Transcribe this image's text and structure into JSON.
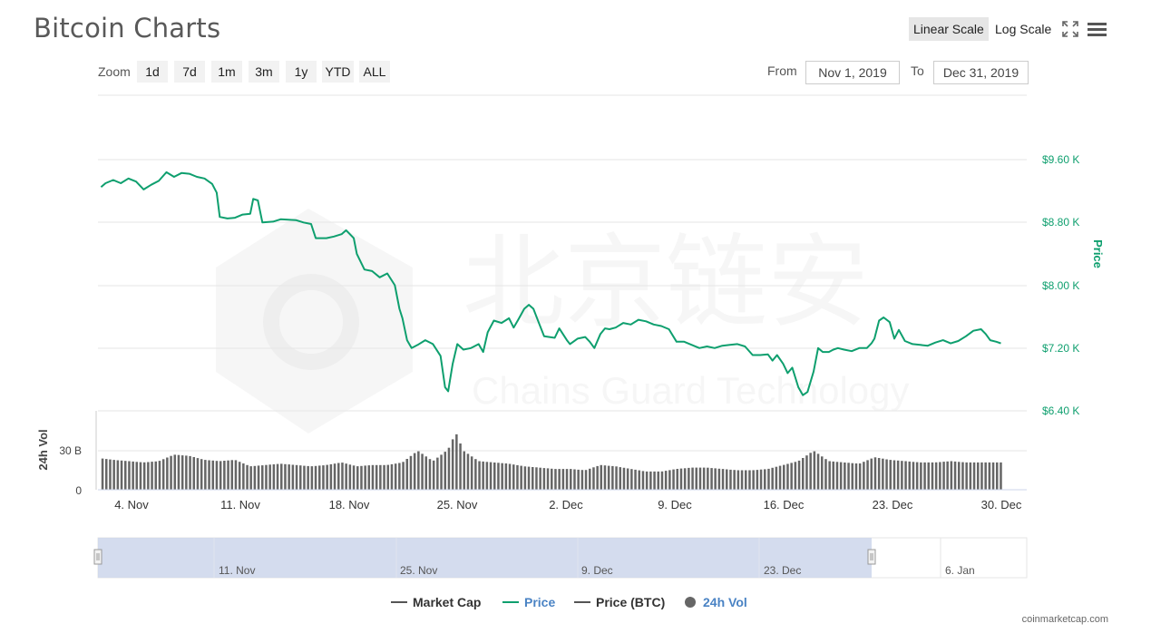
{
  "header": {
    "title": "Bitcoin Charts",
    "linear_scale_label": "Linear Scale",
    "log_scale_label": "Log Scale"
  },
  "toolbar": {
    "zoom_label": "Zoom",
    "zoom_options": [
      "1d",
      "7d",
      "1m",
      "3m",
      "1y",
      "YTD",
      "ALL"
    ],
    "from_label": "From",
    "from_value": "Nov 1, 2019",
    "to_label": "To",
    "to_value": "Dec 31, 2019"
  },
  "watermark": {
    "cn_text": "北京链安",
    "en_text": "Chains Guard Technology"
  },
  "chart_data": {
    "type": "line",
    "price_axis_title": "Price",
    "volume_axis_title": "24h Vol",
    "price_ticks": [
      {
        "value": 9600,
        "label": "$9.60 K"
      },
      {
        "value": 8800,
        "label": "$8.80 K"
      },
      {
        "value": 8000,
        "label": "$8.00 K"
      },
      {
        "value": 7200,
        "label": "$7.20 K"
      },
      {
        "value": 6400,
        "label": "$6.40 K"
      }
    ],
    "price_ylim": [
      6400,
      10400
    ],
    "volume_ticks": [
      {
        "value": 0,
        "label": "0"
      },
      {
        "value": 30,
        "label": "30 B"
      }
    ],
    "volume_ylim": [
      0,
      55
    ],
    "x_range_days": [
      2,
      63
    ],
    "x_ticks": [
      {
        "day": 4,
        "label": "4. Nov"
      },
      {
        "day": 11,
        "label": "11. Nov"
      },
      {
        "day": 18,
        "label": "18. Nov"
      },
      {
        "day": 25,
        "label": "25. Nov"
      },
      {
        "day": 32,
        "label": "2. Dec"
      },
      {
        "day": 39,
        "label": "9. Dec"
      },
      {
        "day": 46,
        "label": "16. Dec"
      },
      {
        "day": 53,
        "label": "23. Dec"
      },
      {
        "day": 60,
        "label": "30. Dec"
      }
    ],
    "price_series": {
      "name": "Price",
      "color": "#0e9f6e",
      "points": [
        [
          2.2,
          9250
        ],
        [
          2.5,
          9300
        ],
        [
          3.0,
          9340
        ],
        [
          3.5,
          9300
        ],
        [
          4.0,
          9360
        ],
        [
          4.5,
          9320
        ],
        [
          5.0,
          9220
        ],
        [
          5.5,
          9280
        ],
        [
          6.0,
          9330
        ],
        [
          6.5,
          9440
        ],
        [
          7.0,
          9380
        ],
        [
          7.5,
          9430
        ],
        [
          8.0,
          9420
        ],
        [
          8.5,
          9380
        ],
        [
          9.0,
          9360
        ],
        [
          9.5,
          9290
        ],
        [
          9.8,
          9180
        ],
        [
          10.0,
          8870
        ],
        [
          10.5,
          8850
        ],
        [
          11.0,
          8860
        ],
        [
          11.5,
          8900
        ],
        [
          12.0,
          8910
        ],
        [
          12.2,
          9100
        ],
        [
          12.5,
          9080
        ],
        [
          12.8,
          8800
        ],
        [
          13.5,
          8810
        ],
        [
          14.0,
          8840
        ],
        [
          15.0,
          8830
        ],
        [
          15.5,
          8800
        ],
        [
          16.0,
          8780
        ],
        [
          16.3,
          8600
        ],
        [
          17.0,
          8600
        ],
        [
          17.5,
          8620
        ],
        [
          18.0,
          8650
        ],
        [
          18.3,
          8700
        ],
        [
          18.8,
          8600
        ],
        [
          19.0,
          8400
        ],
        [
          19.5,
          8200
        ],
        [
          20.0,
          8180
        ],
        [
          20.5,
          8100
        ],
        [
          21.0,
          8150
        ],
        [
          21.5,
          8000
        ],
        [
          21.8,
          7700
        ],
        [
          22.0,
          7580
        ],
        [
          22.3,
          7300
        ],
        [
          22.6,
          7200
        ],
        [
          23.0,
          7240
        ],
        [
          23.5,
          7300
        ],
        [
          24.0,
          7250
        ],
        [
          24.5,
          7100
        ],
        [
          24.8,
          6700
        ],
        [
          25.0,
          6650
        ],
        [
          25.3,
          7000
        ],
        [
          25.6,
          7250
        ],
        [
          26.0,
          7180
        ],
        [
          26.5,
          7200
        ],
        [
          27.0,
          7250
        ],
        [
          27.3,
          7150
        ],
        [
          27.6,
          7400
        ],
        [
          28.0,
          7550
        ],
        [
          28.5,
          7520
        ],
        [
          29.0,
          7580
        ],
        [
          29.3,
          7460
        ],
        [
          29.6,
          7560
        ],
        [
          30.0,
          7700
        ],
        [
          30.3,
          7750
        ],
        [
          30.6,
          7700
        ],
        [
          31.0,
          7500
        ],
        [
          31.3,
          7350
        ],
        [
          32.0,
          7330
        ],
        [
          32.3,
          7450
        ],
        [
          32.8,
          7300
        ],
        [
          33.0,
          7250
        ],
        [
          33.5,
          7320
        ],
        [
          34.0,
          7340
        ],
        [
          34.3,
          7280
        ],
        [
          34.6,
          7200
        ],
        [
          35.0,
          7380
        ],
        [
          35.3,
          7450
        ],
        [
          35.6,
          7440
        ],
        [
          36.0,
          7460
        ],
        [
          36.5,
          7520
        ],
        [
          37.0,
          7500
        ],
        [
          37.5,
          7560
        ],
        [
          38.0,
          7540
        ],
        [
          38.5,
          7500
        ],
        [
          39.0,
          7480
        ],
        [
          39.5,
          7440
        ],
        [
          40.0,
          7280
        ],
        [
          40.5,
          7280
        ],
        [
          41.0,
          7240
        ],
        [
          41.5,
          7200
        ],
        [
          42.0,
          7220
        ],
        [
          42.5,
          7200
        ],
        [
          43.0,
          7230
        ],
        [
          43.5,
          7240
        ],
        [
          44.0,
          7250
        ],
        [
          44.5,
          7220
        ],
        [
          45.0,
          7110
        ],
        [
          45.5,
          7110
        ],
        [
          46.0,
          7120
        ],
        [
          46.3,
          7040
        ],
        [
          46.6,
          7110
        ],
        [
          47.0,
          7000
        ],
        [
          47.3,
          6880
        ],
        [
          47.6,
          6950
        ],
        [
          48.0,
          6700
        ],
        [
          48.3,
          6600
        ],
        [
          48.6,
          6640
        ],
        [
          49.0,
          6900
        ],
        [
          49.3,
          7200
        ],
        [
          49.6,
          7150
        ],
        [
          50.0,
          7150
        ],
        [
          50.3,
          7180
        ],
        [
          50.6,
          7200
        ],
        [
          51.0,
          7180
        ],
        [
          51.5,
          7160
        ],
        [
          52.0,
          7200
        ],
        [
          52.5,
          7200
        ],
        [
          52.8,
          7260
        ],
        [
          53.0,
          7320
        ],
        [
          53.3,
          7550
        ],
        [
          53.6,
          7590
        ],
        [
          54.0,
          7530
        ],
        [
          54.3,
          7320
        ],
        [
          54.6,
          7430
        ],
        [
          55.0,
          7290
        ],
        [
          55.5,
          7250
        ],
        [
          56.0,
          7240
        ],
        [
          56.5,
          7230
        ],
        [
          57.0,
          7270
        ],
        [
          57.5,
          7300
        ],
        [
          58.0,
          7260
        ],
        [
          58.5,
          7290
        ],
        [
          59.0,
          7350
        ],
        [
          59.5,
          7420
        ],
        [
          60.0,
          7440
        ],
        [
          60.3,
          7380
        ],
        [
          60.6,
          7300
        ],
        [
          61.0,
          7280
        ],
        [
          61.3,
          7260
        ]
      ]
    },
    "volume_series": {
      "name": "24h Vol",
      "color": "#666666",
      "points": [
        [
          2.3,
          24
        ],
        [
          3,
          23
        ],
        [
          4,
          22
        ],
        [
          5,
          21
        ],
        [
          6,
          22
        ],
        [
          7,
          27
        ],
        [
          8,
          26
        ],
        [
          9,
          23
        ],
        [
          10,
          22
        ],
        [
          11,
          23
        ],
        [
          12,
          18
        ],
        [
          13,
          19
        ],
        [
          14,
          20
        ],
        [
          15,
          19
        ],
        [
          16,
          18
        ],
        [
          17,
          19
        ],
        [
          18,
          21
        ],
        [
          19,
          18
        ],
        [
          20,
          19
        ],
        [
          21,
          19
        ],
        [
          22,
          21
        ],
        [
          23,
          30
        ],
        [
          24,
          22
        ],
        [
          25,
          31
        ],
        [
          25.5,
          44
        ],
        [
          26,
          30
        ],
        [
          27,
          22
        ],
        [
          28,
          21
        ],
        [
          29,
          20
        ],
        [
          30,
          18
        ],
        [
          31,
          17
        ],
        [
          32,
          16
        ],
        [
          33,
          16
        ],
        [
          34,
          15
        ],
        [
          35,
          19
        ],
        [
          36,
          18
        ],
        [
          37,
          16
        ],
        [
          38,
          14
        ],
        [
          39,
          14
        ],
        [
          40,
          16
        ],
        [
          41,
          17
        ],
        [
          42,
          17
        ],
        [
          43,
          16
        ],
        [
          44,
          15
        ],
        [
          45,
          15
        ],
        [
          46,
          16
        ],
        [
          47,
          19
        ],
        [
          48,
          22
        ],
        [
          49,
          30
        ],
        [
          50,
          22
        ],
        [
          51,
          21
        ],
        [
          52,
          20
        ],
        [
          53,
          25
        ],
        [
          54,
          23
        ],
        [
          55,
          22
        ],
        [
          56,
          21
        ],
        [
          57,
          21
        ],
        [
          58,
          22
        ],
        [
          59,
          21
        ],
        [
          60,
          21
        ],
        [
          61,
          21
        ],
        [
          61.3,
          21
        ]
      ]
    },
    "legend": [
      {
        "name": "Market Cap",
        "color": "#555555"
      },
      {
        "name": "Price",
        "color": "#0e9f6e"
      },
      {
        "name": "Price (BTC)",
        "color": "#555555"
      },
      {
        "name": "24h Vol",
        "color": "#666666"
      }
    ]
  },
  "navigator": {
    "x_ticks": [
      {
        "label": "11. Nov"
      },
      {
        "label": "25. Nov"
      },
      {
        "label": "9. Dec"
      },
      {
        "label": "23. Dec"
      },
      {
        "label": "6. Jan"
      }
    ]
  },
  "footer": {
    "credit": "coinmarketcap.com"
  }
}
